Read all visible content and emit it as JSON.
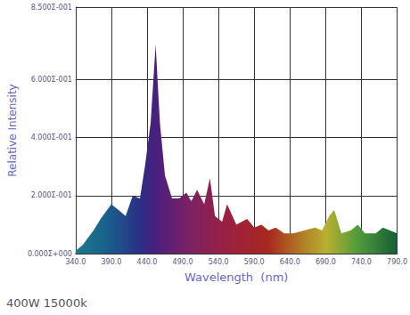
{
  "chart_data": {
    "type": "area",
    "title": "400W 15000k",
    "x_label": "Wavelength  (nm)",
    "y_label": "Relative Intensity",
    "x": [
      340,
      350,
      365,
      375,
      390,
      400,
      410,
      420,
      430,
      437,
      445,
      452,
      458,
      465,
      475,
      485,
      495,
      502,
      510,
      520,
      528,
      535,
      545,
      552,
      565,
      580,
      590,
      600,
      610,
      620,
      632,
      645,
      660,
      675,
      685,
      695,
      702,
      712,
      725,
      735,
      745,
      760,
      770,
      780,
      790
    ],
    "values": [
      0.01,
      0.03,
      0.08,
      0.12,
      0.17,
      0.15,
      0.13,
      0.2,
      0.19,
      0.3,
      0.45,
      0.72,
      0.45,
      0.27,
      0.19,
      0.19,
      0.21,
      0.18,
      0.22,
      0.17,
      0.26,
      0.13,
      0.11,
      0.17,
      0.1,
      0.12,
      0.09,
      0.1,
      0.08,
      0.09,
      0.07,
      0.07,
      0.08,
      0.09,
      0.08,
      0.13,
      0.15,
      0.07,
      0.08,
      0.1,
      0.07,
      0.07,
      0.09,
      0.08,
      0.07
    ],
    "xlim": [
      340,
      790
    ],
    "xticks": [
      {
        "value": 340,
        "label": "340.0"
      },
      {
        "value": 390,
        "label": "390.0"
      },
      {
        "value": 440,
        "label": "440.0"
      },
      {
        "value": 490,
        "label": "490.0"
      },
      {
        "value": 540,
        "label": "540.0"
      },
      {
        "value": 590,
        "label": "590.0"
      },
      {
        "value": 640,
        "label": "640.0"
      },
      {
        "value": 690,
        "label": "690.0"
      },
      {
        "value": 740,
        "label": "740.0"
      },
      {
        "value": 790,
        "label": "790.0"
      }
    ],
    "ylim": [
      0,
      0.85
    ],
    "yticks": [
      {
        "value": 0,
        "label": "0.000Σ+000"
      },
      {
        "value": 0.2,
        "label": "2.000Σ-001"
      },
      {
        "value": 0.4,
        "label": "4.000Σ-001"
      },
      {
        "value": 0.6,
        "label": "6.000Σ-001"
      },
      {
        "value": 0.85,
        "label": "8.500Σ-001"
      }
    ],
    "grid": true
  }
}
